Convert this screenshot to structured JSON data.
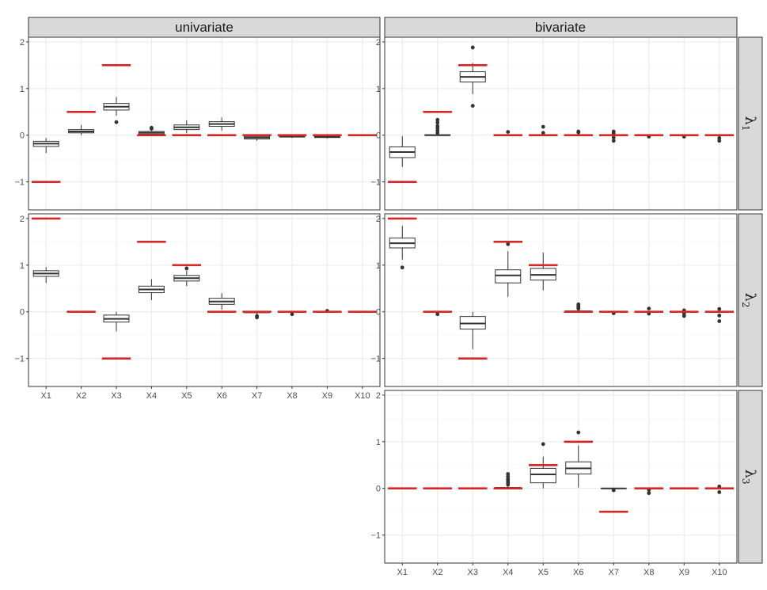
{
  "colors": {
    "strip_fill": "#d9d9d9",
    "strip_border": "#333333",
    "grid_major": "#ebebeb",
    "grid_minor": "#f5f5f5",
    "truth_line": "#d62728",
    "box_stroke": "#333333",
    "outlier": "#333333"
  },
  "chart_data": {
    "type": "boxplot",
    "facet_columns": [
      "univariate",
      "bivariate"
    ],
    "facet_rows": [
      {
        "symbol": "λ",
        "subscript": "1"
      },
      {
        "symbol": "λ",
        "subscript": "2"
      },
      {
        "symbol": "λ",
        "subscript": "3"
      }
    ],
    "categories": [
      "X1",
      "X2",
      "X3",
      "X4",
      "X5",
      "X6",
      "X7",
      "X8",
      "X9",
      "X10"
    ],
    "ylim": [
      -1.6,
      2.1
    ],
    "yticks": [
      -1,
      0,
      1,
      2
    ],
    "ytick_labels": [
      "−1",
      "0",
      "1",
      "2"
    ],
    "panels": [
      {
        "column": "univariate",
        "row": 1,
        "truth": [
          -1,
          0.5,
          1.5,
          0,
          0,
          0,
          0,
          0,
          0,
          0
        ],
        "boxes": [
          {
            "min": -0.38,
            "q1": -0.24,
            "median": -0.18,
            "q3": -0.13,
            "max": -0.06,
            "outliers": []
          },
          {
            "min": 0.0,
            "q1": 0.05,
            "median": 0.08,
            "q3": 0.12,
            "max": 0.22,
            "outliers": []
          },
          {
            "min": 0.42,
            "q1": 0.54,
            "median": 0.61,
            "q3": 0.68,
            "max": 0.82,
            "outliers": [
              0.28
            ]
          },
          {
            "min": 0.0,
            "q1": 0.02,
            "median": 0.05,
            "q3": 0.08,
            "max": 0.1,
            "outliers": [
              0.14,
              0.16
            ]
          },
          {
            "min": 0.04,
            "q1": 0.12,
            "median": 0.17,
            "q3": 0.22,
            "max": 0.32,
            "outliers": []
          },
          {
            "min": 0.1,
            "q1": 0.19,
            "median": 0.24,
            "q3": 0.29,
            "max": 0.38,
            "outliers": []
          },
          {
            "min": -0.12,
            "q1": -0.08,
            "median": -0.05,
            "q3": -0.02,
            "max": 0.0,
            "outliers": []
          },
          {
            "min": -0.06,
            "q1": -0.04,
            "median": -0.03,
            "q3": -0.01,
            "max": 0.0,
            "outliers": []
          },
          {
            "min": -0.07,
            "q1": -0.05,
            "median": -0.03,
            "q3": -0.01,
            "max": 0.0,
            "outliers": []
          },
          {
            "min": 0.0,
            "q1": 0.0,
            "median": 0.0,
            "q3": 0.0,
            "max": 0.0,
            "outliers": []
          }
        ]
      },
      {
        "column": "bivariate",
        "row": 1,
        "truth": [
          -1,
          0.5,
          1.5,
          0,
          0,
          0,
          0,
          0,
          0,
          0
        ],
        "boxes": [
          {
            "min": -0.68,
            "q1": -0.48,
            "median": -0.36,
            "q3": -0.25,
            "max": -0.02,
            "outliers": []
          },
          {
            "min": 0.0,
            "q1": 0.0,
            "median": 0.0,
            "q3": 0.01,
            "max": 0.02,
            "outliers": [
              0.05,
              0.1,
              0.15,
              0.2,
              0.27,
              0.33
            ]
          },
          {
            "min": 0.88,
            "q1": 1.14,
            "median": 1.25,
            "q3": 1.36,
            "max": 1.55,
            "outliers": [
              0.63,
              1.88
            ]
          },
          {
            "min": 0.0,
            "q1": 0.0,
            "median": 0.0,
            "q3": 0.0,
            "max": 0.0,
            "outliers": [
              0.07
            ]
          },
          {
            "min": 0.0,
            "q1": 0.0,
            "median": 0.0,
            "q3": 0.0,
            "max": 0.0,
            "outliers": [
              0.05,
              0.18
            ]
          },
          {
            "min": 0.0,
            "q1": 0.0,
            "median": 0.0,
            "q3": 0.0,
            "max": 0.0,
            "outliers": [
              0.06,
              0.08
            ]
          },
          {
            "min": 0.0,
            "q1": 0.0,
            "median": 0.0,
            "q3": 0.0,
            "max": 0.0,
            "outliers": [
              -0.12,
              -0.05,
              0.04,
              0.08
            ]
          },
          {
            "min": 0.0,
            "q1": 0.0,
            "median": 0.0,
            "q3": 0.0,
            "max": 0.0,
            "outliers": [
              -0.03
            ]
          },
          {
            "min": 0.0,
            "q1": 0.0,
            "median": 0.0,
            "q3": 0.0,
            "max": 0.0,
            "outliers": [
              -0.03
            ]
          },
          {
            "min": 0.0,
            "q1": 0.0,
            "median": 0.0,
            "q3": 0.0,
            "max": 0.0,
            "outliers": [
              -0.12,
              -0.06
            ]
          }
        ]
      },
      {
        "column": "univariate",
        "row": 2,
        "truth": [
          2,
          0,
          -1,
          1.5,
          1,
          0,
          0,
          0,
          0,
          0
        ],
        "boxes": [
          {
            "min": 0.62,
            "q1": 0.76,
            "median": 0.82,
            "q3": 0.88,
            "max": 0.96,
            "outliers": []
          },
          {
            "min": 0.0,
            "q1": 0.0,
            "median": 0.0,
            "q3": 0.0,
            "max": 0.0,
            "outliers": []
          },
          {
            "min": -0.42,
            "q1": -0.22,
            "median": -0.15,
            "q3": -0.07,
            "max": 0.0,
            "outliers": []
          },
          {
            "min": 0.25,
            "q1": 0.41,
            "median": 0.48,
            "q3": 0.55,
            "max": 0.7,
            "outliers": []
          },
          {
            "min": 0.55,
            "q1": 0.66,
            "median": 0.72,
            "q3": 0.78,
            "max": 0.88,
            "outliers": [
              0.93
            ]
          },
          {
            "min": 0.05,
            "q1": 0.16,
            "median": 0.22,
            "q3": 0.29,
            "max": 0.4,
            "outliers": []
          },
          {
            "min": -0.06,
            "q1": -0.02,
            "median": 0.0,
            "q3": 0.0,
            "max": 0.0,
            "outliers": [
              -0.12,
              -0.09
            ]
          },
          {
            "min": 0.0,
            "q1": 0.0,
            "median": 0.0,
            "q3": 0.0,
            "max": 0.0,
            "outliers": [
              -0.05
            ]
          },
          {
            "min": 0.0,
            "q1": 0.0,
            "median": 0.0,
            "q3": 0.0,
            "max": 0.0,
            "outliers": [
              0.02
            ]
          },
          {
            "min": 0.0,
            "q1": 0.0,
            "median": 0.0,
            "q3": 0.0,
            "max": 0.0,
            "outliers": []
          }
        ]
      },
      {
        "column": "bivariate",
        "row": 2,
        "truth": [
          2,
          0,
          -1,
          1.5,
          1,
          0,
          0,
          0,
          0,
          0
        ],
        "boxes": [
          {
            "min": 1.12,
            "q1": 1.37,
            "median": 1.47,
            "q3": 1.58,
            "max": 1.84,
            "outliers": [
              0.95
            ]
          },
          {
            "min": 0.0,
            "q1": 0.0,
            "median": 0.0,
            "q3": 0.0,
            "max": 0.0,
            "outliers": [
              -0.05
            ]
          },
          {
            "min": -0.8,
            "q1": -0.37,
            "median": -0.25,
            "q3": -0.1,
            "max": 0.0,
            "outliers": []
          },
          {
            "min": 0.32,
            "q1": 0.62,
            "median": 0.78,
            "q3": 0.9,
            "max": 1.3,
            "outliers": [
              1.45
            ]
          },
          {
            "min": 0.46,
            "q1": 0.68,
            "median": 0.79,
            "q3": 0.93,
            "max": 1.27,
            "outliers": []
          },
          {
            "min": 0.0,
            "q1": 0.0,
            "median": 0.0,
            "q3": 0.02,
            "max": 0.04,
            "outliers": [
              0.07,
              0.1,
              0.13,
              0.16
            ]
          },
          {
            "min": 0.0,
            "q1": 0.0,
            "median": 0.0,
            "q3": 0.0,
            "max": 0.0,
            "outliers": [
              -0.03
            ]
          },
          {
            "min": 0.0,
            "q1": 0.0,
            "median": 0.0,
            "q3": 0.0,
            "max": 0.0,
            "outliers": [
              -0.04,
              0.07
            ]
          },
          {
            "min": 0.0,
            "q1": 0.0,
            "median": 0.0,
            "q3": 0.0,
            "max": 0.0,
            "outliers": [
              -0.09,
              -0.04,
              0.03
            ]
          },
          {
            "min": 0.0,
            "q1": 0.0,
            "median": 0.0,
            "q3": 0.0,
            "max": 0.0,
            "outliers": [
              -0.2,
              -0.08,
              0.06
            ]
          }
        ]
      },
      {
        "column": "bivariate",
        "row": 3,
        "truth": [
          0,
          0,
          0,
          0,
          0.5,
          1,
          -0.5,
          0,
          0,
          0
        ],
        "boxes": [
          {
            "min": 0.0,
            "q1": 0.0,
            "median": 0.0,
            "q3": 0.0,
            "max": 0.0,
            "outliers": []
          },
          {
            "min": 0.0,
            "q1": 0.0,
            "median": 0.0,
            "q3": 0.0,
            "max": 0.0,
            "outliers": []
          },
          {
            "min": 0.0,
            "q1": 0.0,
            "median": 0.0,
            "q3": 0.0,
            "max": 0.0,
            "outliers": []
          },
          {
            "min": 0.0,
            "q1": 0.0,
            "median": 0.0,
            "q3": 0.02,
            "max": 0.05,
            "outliers": [
              0.08,
              0.12,
              0.16,
              0.2,
              0.25,
              0.31
            ]
          },
          {
            "min": 0.0,
            "q1": 0.12,
            "median": 0.3,
            "q3": 0.43,
            "max": 0.68,
            "outliers": [
              0.95
            ]
          },
          {
            "min": 0.02,
            "q1": 0.31,
            "median": 0.43,
            "q3": 0.57,
            "max": 0.92,
            "outliers": [
              1.2
            ]
          },
          {
            "min": 0.0,
            "q1": 0.0,
            "median": 0.0,
            "q3": 0.0,
            "max": 0.0,
            "outliers": [
              -0.04
            ]
          },
          {
            "min": 0.0,
            "q1": 0.0,
            "median": 0.0,
            "q3": 0.0,
            "max": 0.0,
            "outliers": [
              -0.1,
              -0.03
            ]
          },
          {
            "min": 0.0,
            "q1": 0.0,
            "median": 0.0,
            "q3": 0.0,
            "max": 0.0,
            "outliers": []
          },
          {
            "min": 0.0,
            "q1": 0.0,
            "median": 0.0,
            "q3": 0.0,
            "max": 0.0,
            "outliers": [
              -0.08,
              0.04
            ]
          }
        ]
      }
    ]
  }
}
